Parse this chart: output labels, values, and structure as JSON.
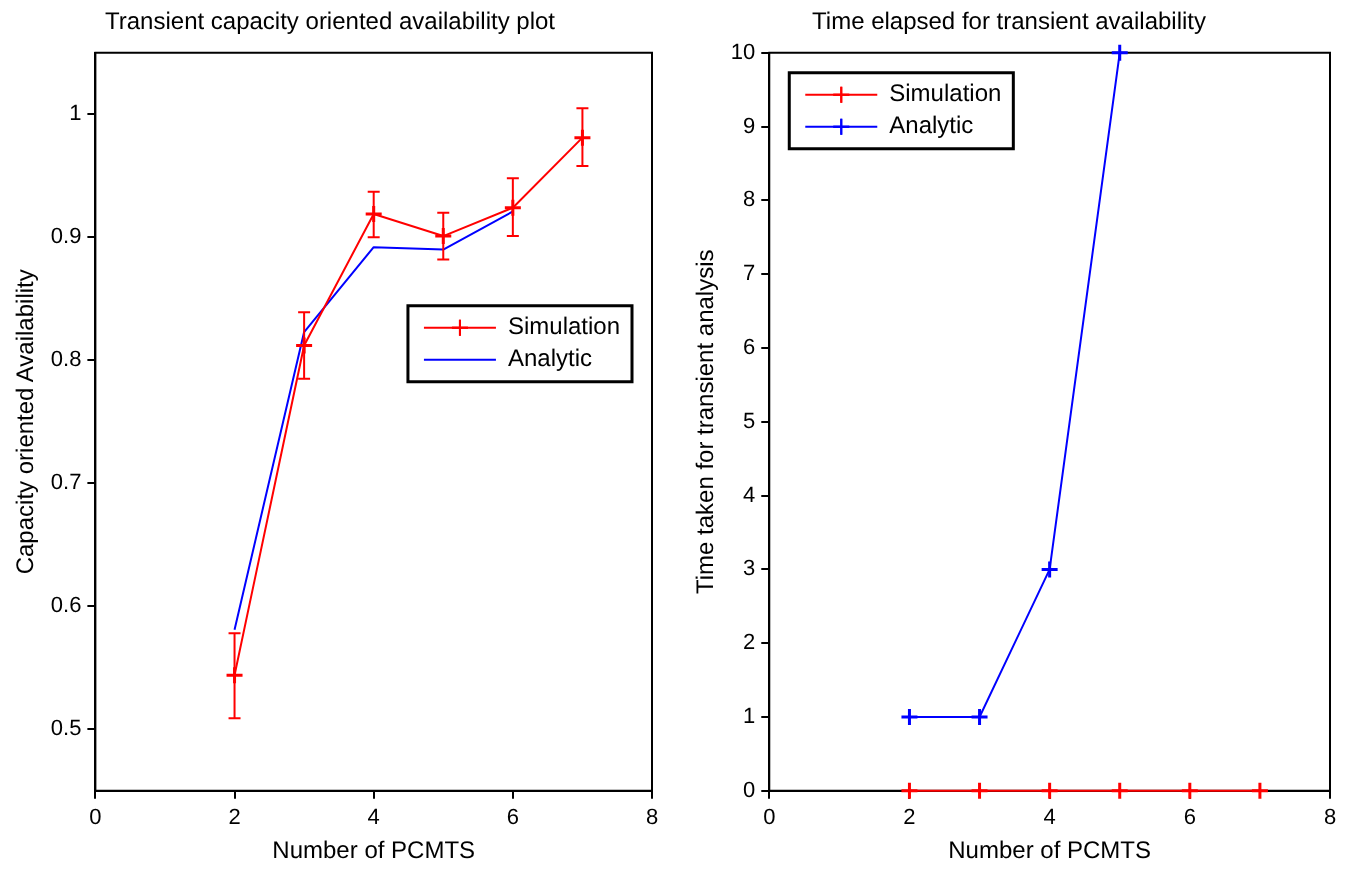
{
  "chart_data": [
    {
      "type": "line",
      "title": "Transient capacity oriented availability plot",
      "xlabel": "Number of PCMTS",
      "ylabel": "Capacity oriented Availability",
      "xlim": [
        0,
        8
      ],
      "xticks": [
        0,
        2,
        4,
        6,
        8
      ],
      "ylim": [
        0.45,
        1.05
      ],
      "yticks": [
        0.5,
        0.6,
        0.7,
        0.8,
        0.9,
        1
      ],
      "grid": false,
      "legend": "right",
      "series": [
        {
          "name": "Simulation",
          "color": "#ff0000",
          "marker": "cross",
          "x": [
            2,
            3,
            4,
            5,
            6,
            7
          ],
          "values": [
            0.544,
            0.812,
            0.919,
            0.901,
            0.924,
            0.981
          ],
          "errors": [
            [
              0.509,
              0.578
            ],
            [
              0.785,
              0.839
            ],
            [
              0.9,
              0.937
            ],
            [
              0.882,
              0.92
            ],
            [
              0.901,
              0.948
            ],
            [
              0.958,
              1.005
            ]
          ]
        },
        {
          "name": "Analytic",
          "color": "#0000ff",
          "marker": "none",
          "x": [
            2,
            3,
            4,
            5,
            6
          ],
          "values": [
            0.581,
            0.823,
            0.892,
            0.89,
            0.921
          ]
        }
      ]
    },
    {
      "type": "line",
      "title": "Time elapsed for transient availability",
      "xlabel": "Number of PCMTS",
      "ylabel": "Time taken for transient analysis",
      "xlim": [
        0,
        8
      ],
      "xticks": [
        0,
        2,
        4,
        6,
        8
      ],
      "ylim": [
        0,
        10
      ],
      "yticks": [
        0,
        1,
        2,
        3,
        4,
        5,
        6,
        7,
        8,
        9,
        10
      ],
      "grid": false,
      "legend": "top left",
      "series": [
        {
          "name": "Simulation",
          "color": "#ff0000",
          "marker": "cross",
          "x": [
            2,
            3,
            4,
            5,
            6,
            7
          ],
          "values": [
            0,
            0,
            0,
            0,
            0,
            0
          ]
        },
        {
          "name": "Analytic",
          "color": "#0000ff",
          "marker": "cross",
          "x": [
            2,
            3,
            4,
            5
          ],
          "values": [
            1,
            1,
            3,
            10
          ]
        }
      ]
    }
  ]
}
